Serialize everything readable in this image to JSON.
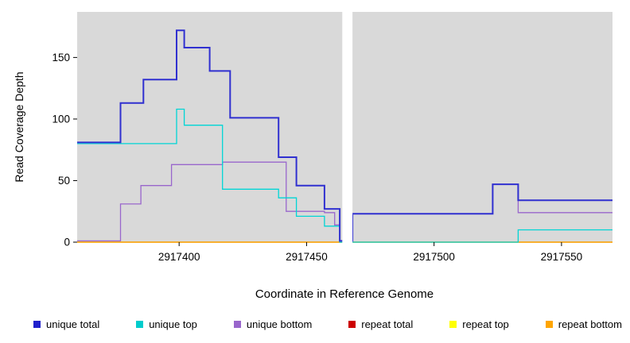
{
  "chart_data": {
    "type": "line",
    "subtype": "step",
    "title": "",
    "xlabel": "Coordinate in Reference Genome",
    "ylabel": "Read Coverage Depth",
    "xlim": [
      2917360,
      2917570
    ],
    "ylim": [
      0,
      187
    ],
    "xticks": [
      2917400,
      2917450,
      2917500,
      2917550
    ],
    "yticks": [
      0,
      50,
      100,
      150
    ],
    "plot_bg": "#D9D9D9",
    "grid": false,
    "legend_position": "bottom",
    "gap": {
      "x_start": 2917464,
      "x_end": 2917468
    },
    "series": [
      {
        "name": "repeat total",
        "color": "#CC0000",
        "width": 1.3,
        "points": [
          [
            2917360,
            0
          ],
          [
            2917570,
            0
          ]
        ]
      },
      {
        "name": "repeat top",
        "color": "#FFFF00",
        "width": 1.3,
        "points": [
          [
            2917360,
            0
          ],
          [
            2917570,
            0
          ]
        ]
      },
      {
        "name": "repeat bottom",
        "color": "#FFA500",
        "width": 1.3,
        "points": [
          [
            2917360,
            0
          ],
          [
            2917570,
            0
          ]
        ]
      },
      {
        "name": "unique bottom",
        "color": "#9966CC",
        "width": 1.3,
        "points": [
          [
            2917360,
            1
          ],
          [
            2917377,
            31
          ],
          [
            2917385,
            46
          ],
          [
            2917397,
            63
          ],
          [
            2917417,
            65
          ],
          [
            2917442,
            25
          ],
          [
            2917457,
            24
          ],
          [
            2917461,
            14
          ],
          [
            2917463,
            1
          ],
          [
            2917468,
            23
          ],
          [
            2917523,
            47
          ],
          [
            2917533,
            24
          ],
          [
            2917570,
            24
          ]
        ]
      },
      {
        "name": "unique top",
        "color": "#00D5D5",
        "width": 1.3,
        "points": [
          [
            2917360,
            80
          ],
          [
            2917399,
            108
          ],
          [
            2917402,
            95
          ],
          [
            2917417,
            43
          ],
          [
            2917439,
            36
          ],
          [
            2917446,
            21
          ],
          [
            2917457,
            13
          ],
          [
            2917463,
            0
          ],
          [
            2917468,
            0
          ],
          [
            2917533,
            10
          ],
          [
            2917570,
            10
          ]
        ]
      },
      {
        "name": "unique total",
        "color": "#3030D0",
        "width": 2,
        "points": [
          [
            2917360,
            81
          ],
          [
            2917377,
            113
          ],
          [
            2917386,
            132
          ],
          [
            2917399,
            172
          ],
          [
            2917402,
            158
          ],
          [
            2917412,
            139
          ],
          [
            2917420,
            101
          ],
          [
            2917439,
            69
          ],
          [
            2917446,
            46
          ],
          [
            2917457,
            27
          ],
          [
            2917463,
            1
          ],
          [
            2917468,
            23
          ],
          [
            2917523,
            47
          ],
          [
            2917533,
            34
          ],
          [
            2917570,
            34
          ]
        ]
      }
    ],
    "legend": [
      {
        "label": "unique total",
        "color": "#2020CC"
      },
      {
        "label": "unique top",
        "color": "#00CCCC"
      },
      {
        "label": "unique bottom",
        "color": "#9966CC"
      },
      {
        "label": "repeat total",
        "color": "#CC0000"
      },
      {
        "label": "repeat top",
        "color": "#FFFF00"
      },
      {
        "label": "repeat bottom",
        "color": "#FFA500"
      }
    ]
  }
}
